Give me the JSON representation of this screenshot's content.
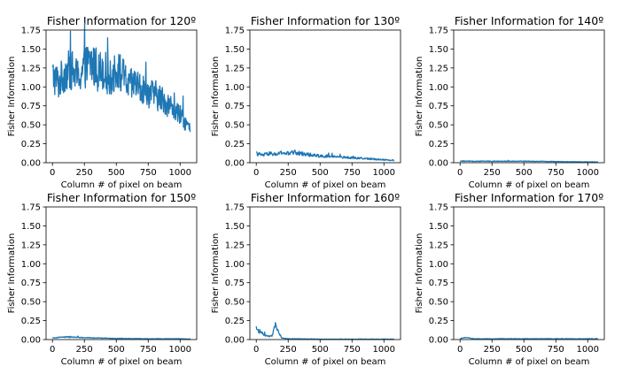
{
  "figure": {
    "background": "#ffffff",
    "line_color": "#1f77b4"
  },
  "chart_data": [
    {
      "type": "line",
      "title": "Fisher Information for 120º",
      "xlabel": "Column # of pixel on beam",
      "ylabel": "Fisher Information",
      "xlim": [
        -50,
        1130
      ],
      "ylim": [
        0,
        1.75
      ],
      "xticks": [
        0,
        250,
        500,
        750,
        1000
      ],
      "xtick_labels": [
        "0",
        "250",
        "500",
        "750",
        "1000"
      ],
      "yticks": [
        0,
        0.25,
        0.5,
        0.75,
        1.0,
        1.25,
        1.5,
        1.75
      ],
      "ytick_labels": [
        "0.00",
        "0.25",
        "0.50",
        "0.75",
        "1.00",
        "1.25",
        "1.50",
        "1.75"
      ],
      "series": [
        {
          "x": [
            0,
            50,
            100,
            150,
            200,
            250,
            300,
            350,
            400,
            450,
            500,
            550,
            600,
            650,
            700,
            750,
            800,
            850,
            900,
            950,
            1000,
            1050,
            1080
          ],
          "y": [
            1.15,
            1.05,
            1.2,
            1.22,
            1.12,
            1.25,
            1.32,
            1.2,
            1.25,
            1.1,
            1.22,
            1.15,
            1.0,
            1.05,
            0.95,
            0.92,
            0.9,
            0.85,
            0.78,
            0.7,
            0.62,
            0.52,
            0.42
          ]
        }
      ]
    },
    {
      "type": "line",
      "title": "Fisher Information for 130º",
      "xlabel": "Column # of pixel on beam",
      "ylabel": "Fisher Information",
      "xlim": [
        -50,
        1130
      ],
      "ylim": [
        0,
        1.75
      ],
      "xticks": [
        0,
        250,
        500,
        750,
        1000
      ],
      "xtick_labels": [
        "0",
        "250",
        "500",
        "750",
        "1000"
      ],
      "yticks": [
        0,
        0.25,
        0.5,
        0.75,
        1.0,
        1.25,
        1.5,
        1.75
      ],
      "ytick_labels": [
        "0.00",
        "0.25",
        "0.50",
        "0.75",
        "1.00",
        "1.25",
        "1.50",
        "1.75"
      ],
      "series": [
        {
          "x": [
            0,
            50,
            100,
            150,
            200,
            250,
            300,
            350,
            400,
            450,
            500,
            600,
            700,
            800,
            900,
            1000,
            1080
          ],
          "y": [
            0.12,
            0.1,
            0.12,
            0.11,
            0.13,
            0.12,
            0.14,
            0.12,
            0.11,
            0.1,
            0.09,
            0.08,
            0.07,
            0.06,
            0.05,
            0.04,
            0.03
          ]
        }
      ]
    },
    {
      "type": "line",
      "title": "Fisher Information for 140º",
      "xlabel": "Column # of pixel on beam",
      "ylabel": "Fisher Information",
      "xlim": [
        -50,
        1130
      ],
      "ylim": [
        0,
        1.75
      ],
      "xticks": [
        0,
        250,
        500,
        750,
        1000
      ],
      "xtick_labels": [
        "0",
        "250",
        "500",
        "750",
        "1000"
      ],
      "yticks": [
        0,
        0.25,
        0.5,
        0.75,
        1.0,
        1.25,
        1.5,
        1.75
      ],
      "ytick_labels": [
        "0.00",
        "0.25",
        "0.50",
        "0.75",
        "1.00",
        "1.25",
        "1.50",
        "1.75"
      ],
      "series": [
        {
          "x": [
            0,
            250,
            500,
            750,
            1000,
            1080
          ],
          "y": [
            0.02,
            0.02,
            0.02,
            0.015,
            0.01,
            0.01
          ]
        }
      ]
    },
    {
      "type": "line",
      "title": "Fisher Information for 150º",
      "xlabel": "Column # of pixel on beam",
      "ylabel": "Fisher Information",
      "xlim": [
        -50,
        1130
      ],
      "ylim": [
        0,
        1.75
      ],
      "xticks": [
        0,
        250,
        500,
        750,
        1000
      ],
      "xtick_labels": [
        "0",
        "250",
        "500",
        "750",
        "1000"
      ],
      "yticks": [
        0,
        0.25,
        0.5,
        0.75,
        1.0,
        1.25,
        1.5,
        1.75
      ],
      "ytick_labels": [
        "0.00",
        "0.25",
        "0.50",
        "0.75",
        "1.00",
        "1.25",
        "1.50",
        "1.75"
      ],
      "series": [
        {
          "x": [
            0,
            100,
            250,
            500,
            750,
            1000,
            1080
          ],
          "y": [
            0.02,
            0.035,
            0.025,
            0.015,
            0.01,
            0.01,
            0.005
          ]
        }
      ]
    },
    {
      "type": "line",
      "title": "Fisher Information for 160º",
      "xlabel": "Column # of pixel on beam",
      "ylabel": "Fisher Information",
      "xlim": [
        -50,
        1130
      ],
      "ylim": [
        0,
        1.75
      ],
      "xticks": [
        0,
        250,
        500,
        750,
        1000
      ],
      "xtick_labels": [
        "0",
        "250",
        "500",
        "750",
        "1000"
      ],
      "yticks": [
        0,
        0.25,
        0.5,
        0.75,
        1.0,
        1.25,
        1.5,
        1.75
      ],
      "ytick_labels": [
        "0.00",
        "0.25",
        "0.50",
        "0.75",
        "1.00",
        "1.25",
        "1.50",
        "1.75"
      ],
      "series": [
        {
          "x": [
            0,
            25,
            50,
            75,
            100,
            125,
            150,
            175,
            200,
            250,
            500,
            750,
            1000,
            1080
          ],
          "y": [
            0.15,
            0.1,
            0.08,
            0.05,
            0.04,
            0.05,
            0.2,
            0.1,
            0.02,
            0.01,
            0.005,
            0.005,
            0.005,
            0.005
          ]
        }
      ]
    },
    {
      "type": "line",
      "title": "Fisher Information for 170º",
      "xlabel": "Column # of pixel on beam",
      "ylabel": "Fisher Information",
      "xlim": [
        -50,
        1130
      ],
      "ylim": [
        0,
        1.75
      ],
      "xticks": [
        0,
        250,
        500,
        750,
        1000
      ],
      "xtick_labels": [
        "0",
        "250",
        "500",
        "750",
        "1000"
      ],
      "yticks": [
        0,
        0.25,
        0.5,
        0.75,
        1.0,
        1.25,
        1.5,
        1.75
      ],
      "ytick_labels": [
        "0.00",
        "0.25",
        "0.50",
        "0.75",
        "1.00",
        "1.25",
        "1.50",
        "1.75"
      ],
      "series": [
        {
          "x": [
            0,
            50,
            100,
            250,
            500,
            750,
            1000,
            1080
          ],
          "y": [
            0.01,
            0.03,
            0.01,
            0.01,
            0.01,
            0.01,
            0.01,
            0.01
          ]
        }
      ]
    }
  ]
}
